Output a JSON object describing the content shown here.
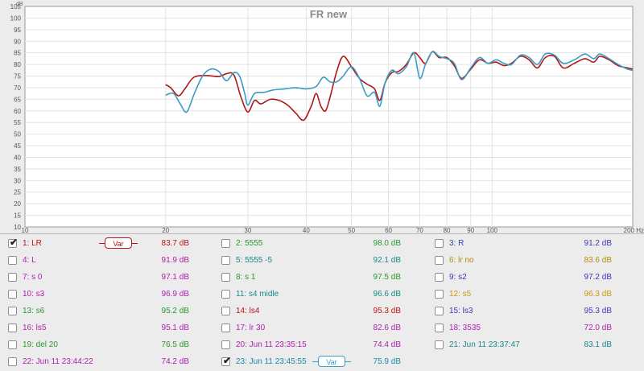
{
  "chart_data": {
    "type": "line",
    "title": "FR new",
    "y_unit": "dB",
    "x_unit": "Hz",
    "x_scale": "log",
    "xlim": [
      10,
      200
    ],
    "ylim": [
      10,
      105
    ],
    "y_ticks": [
      10,
      15,
      20,
      25,
      30,
      35,
      40,
      45,
      50,
      55,
      60,
      65,
      70,
      75,
      80,
      85,
      90,
      95,
      100,
      105
    ],
    "x_ticks": [
      10,
      20,
      30,
      40,
      50,
      60,
      70,
      80,
      90,
      100,
      200
    ],
    "x_tick_labels": [
      "10",
      "20",
      "30",
      "40",
      "50",
      "60",
      "70",
      "80",
      "90",
      "100",
      "200 Hz"
    ],
    "grid": true,
    "series": [
      {
        "name": "1: LR",
        "color": "#b01818",
        "points": [
          [
            20.0,
            71.3
          ],
          [
            20.5,
            70.0
          ],
          [
            21.3,
            66.5
          ],
          [
            22.0,
            69.5
          ],
          [
            23.0,
            74.5
          ],
          [
            24.5,
            75.2
          ],
          [
            26.0,
            74.8
          ],
          [
            27.0,
            76.0
          ],
          [
            28.0,
            75.5
          ],
          [
            29.0,
            66.0
          ],
          [
            30.0,
            59.5
          ],
          [
            31.0,
            64.5
          ],
          [
            32.0,
            63.0
          ],
          [
            33.5,
            65.0
          ],
          [
            35.0,
            64.5
          ],
          [
            36.5,
            62.5
          ],
          [
            38.0,
            59.0
          ],
          [
            39.5,
            56.0
          ],
          [
            41.0,
            62.0
          ],
          [
            42.0,
            67.5
          ],
          [
            43.0,
            62.0
          ],
          [
            44.0,
            60.0
          ],
          [
            45.0,
            66.0
          ],
          [
            46.5,
            77.0
          ],
          [
            48.0,
            83.5
          ],
          [
            50.0,
            79.0
          ],
          [
            52.0,
            74.0
          ],
          [
            54.0,
            71.5
          ],
          [
            56.0,
            69.5
          ],
          [
            57.5,
            64.5
          ],
          [
            59.0,
            72.0
          ],
          [
            61.0,
            76.5
          ],
          [
            63.0,
            77.0
          ],
          [
            65.5,
            80.0
          ],
          [
            68.0,
            85.0
          ],
          [
            70.0,
            83.0
          ],
          [
            72.0,
            80.5
          ],
          [
            74.5,
            85.5
          ],
          [
            77.0,
            83.0
          ],
          [
            80.0,
            83.0
          ],
          [
            83.0,
            79.5
          ],
          [
            86.0,
            74.0
          ],
          [
            90.0,
            78.0
          ],
          [
            94.0,
            82.0
          ],
          [
            98.0,
            80.5
          ],
          [
            102.0,
            81.0
          ],
          [
            106.0,
            79.5
          ],
          [
            110.0,
            80.5
          ],
          [
            115.0,
            83.5
          ],
          [
            120.0,
            82.0
          ],
          [
            125.0,
            78.5
          ],
          [
            130.0,
            83.0
          ],
          [
            136.0,
            83.5
          ],
          [
            142.0,
            78.5
          ],
          [
            150.0,
            80.5
          ],
          [
            158.0,
            82.5
          ],
          [
            165.0,
            81.0
          ],
          [
            170.0,
            83.5
          ],
          [
            178.0,
            82.0
          ],
          [
            186.0,
            79.5
          ],
          [
            195.0,
            78.5
          ],
          [
            200.0,
            78.0
          ]
        ]
      },
      {
        "name": "23: Jun 11 23:45:55",
        "color": "#3a9cc4",
        "points": [
          [
            20.0,
            66.8
          ],
          [
            20.8,
            67.5
          ],
          [
            21.5,
            63.0
          ],
          [
            22.2,
            59.5
          ],
          [
            23.0,
            67.0
          ],
          [
            24.0,
            75.0
          ],
          [
            25.0,
            78.0
          ],
          [
            26.0,
            77.0
          ],
          [
            27.0,
            73.0
          ],
          [
            28.0,
            76.5
          ],
          [
            28.8,
            75.0
          ],
          [
            29.5,
            68.0
          ],
          [
            30.0,
            62.5
          ],
          [
            31.0,
            67.5
          ],
          [
            32.5,
            68.0
          ],
          [
            34.0,
            69.0
          ],
          [
            36.0,
            69.5
          ],
          [
            38.0,
            70.0
          ],
          [
            40.0,
            69.5
          ],
          [
            42.0,
            70.5
          ],
          [
            43.5,
            74.5
          ],
          [
            45.0,
            72.5
          ],
          [
            46.5,
            72.5
          ],
          [
            48.0,
            75.0
          ],
          [
            50.0,
            79.0
          ],
          [
            52.0,
            74.0
          ],
          [
            54.0,
            66.5
          ],
          [
            56.0,
            68.0
          ],
          [
            57.5,
            62.0
          ],
          [
            59.0,
            72.0
          ],
          [
            61.0,
            77.5
          ],
          [
            63.0,
            76.0
          ],
          [
            65.5,
            79.0
          ],
          [
            68.0,
            85.0
          ],
          [
            70.0,
            74.0
          ],
          [
            72.0,
            80.0
          ],
          [
            74.5,
            85.5
          ],
          [
            77.0,
            83.5
          ],
          [
            80.0,
            82.5
          ],
          [
            83.0,
            80.5
          ],
          [
            86.0,
            73.5
          ],
          [
            90.0,
            78.5
          ],
          [
            94.0,
            83.0
          ],
          [
            98.0,
            80.5
          ],
          [
            102.0,
            82.0
          ],
          [
            106.0,
            80.5
          ],
          [
            110.0,
            80.0
          ],
          [
            115.0,
            84.0
          ],
          [
            120.0,
            83.0
          ],
          [
            125.0,
            80.0
          ],
          [
            130.0,
            84.5
          ],
          [
            136.0,
            84.0
          ],
          [
            142.0,
            80.5
          ],
          [
            150.0,
            82.0
          ],
          [
            158.0,
            84.5
          ],
          [
            165.0,
            82.5
          ],
          [
            170.0,
            84.5
          ],
          [
            178.0,
            82.5
          ],
          [
            186.0,
            80.0
          ],
          [
            195.0,
            78.0
          ],
          [
            200.0,
            77.5
          ]
        ]
      }
    ]
  },
  "legend": {
    "var_label": "Var",
    "rows": [
      [
        {
          "label": "1: LR",
          "value": "83.7 dB",
          "color": "#c01010",
          "checked": true,
          "var": true,
          "var_color": "#b01818"
        },
        {
          "label": "2: 5555",
          "value": "98.0 dB",
          "color": "#2a9a2a",
          "checked": false
        },
        {
          "label": "3: R",
          "value": "91.2 dB",
          "color": "#3a3ab8",
          "checked": false
        }
      ],
      [
        {
          "label": "4: L",
          "value": "91.9 dB",
          "color": "#b020b0",
          "checked": false
        },
        {
          "label": "5: 5555 -5",
          "value": "92.1 dB",
          "color": "#1a8a8a",
          "checked": false
        },
        {
          "label": "6: lr no",
          "value": "83.6 dB",
          "color": "#b88a10",
          "checked": false
        }
      ],
      [
        {
          "label": "7: s 0",
          "value": "97.1 dB",
          "color": "#b020b0",
          "checked": false
        },
        {
          "label": "8: s 1",
          "value": "97.5 dB",
          "color": "#2a9a2a",
          "checked": false
        },
        {
          "label": "9: s2",
          "value": "97.2 dB",
          "color": "#3a3ab8",
          "checked": false
        }
      ],
      [
        {
          "label": "10: s3",
          "value": "96.9 dB",
          "color": "#b020b0",
          "checked": false
        },
        {
          "label": "11: s4 midle",
          "value": "96.6 dB",
          "color": "#1a8a8a",
          "checked": false
        },
        {
          "label": "12: s5",
          "value": "96.3 dB",
          "color": "#c89a10",
          "checked": false
        }
      ],
      [
        {
          "label": "13: s6",
          "value": "95.2 dB",
          "color": "#2a9a2a",
          "checked": false
        },
        {
          "label": "14: ls4",
          "value": "95.3 dB",
          "color": "#c01010",
          "checked": false
        },
        {
          "label": "15: ls3",
          "value": "95.3 dB",
          "color": "#3a3ab8",
          "checked": false
        }
      ],
      [
        {
          "label": "16: ls5",
          "value": "95.1 dB",
          "color": "#b020b0",
          "checked": false
        },
        {
          "label": "17: lr 30",
          "value": "82.6 dB",
          "color": "#b020b0",
          "checked": false
        },
        {
          "label": "18: 3535",
          "value": "72.0 dB",
          "color": "#b020b0",
          "checked": false
        }
      ],
      [
        {
          "label": "19: del 20",
          "value": "76.5 dB",
          "color": "#2a9a2a",
          "checked": false
        },
        {
          "label": "20: Jun 11 23:35:15",
          "value": "74.4 dB",
          "color": "#b020b0",
          "checked": false
        },
        {
          "label": "21: Jun 11 23:37:47",
          "value": "83.1 dB",
          "color": "#1a8a8a",
          "checked": false
        }
      ],
      [
        {
          "label": "22: Jun 11 23:44:22",
          "value": "74.2 dB",
          "color": "#b020b0",
          "checked": false
        },
        {
          "label": "23: Jun 11 23:45:55",
          "value": "75.9 dB",
          "color": "#1a8aaa",
          "checked": true,
          "var": true,
          "var_color": "#3a9cc4"
        }
      ]
    ]
  }
}
